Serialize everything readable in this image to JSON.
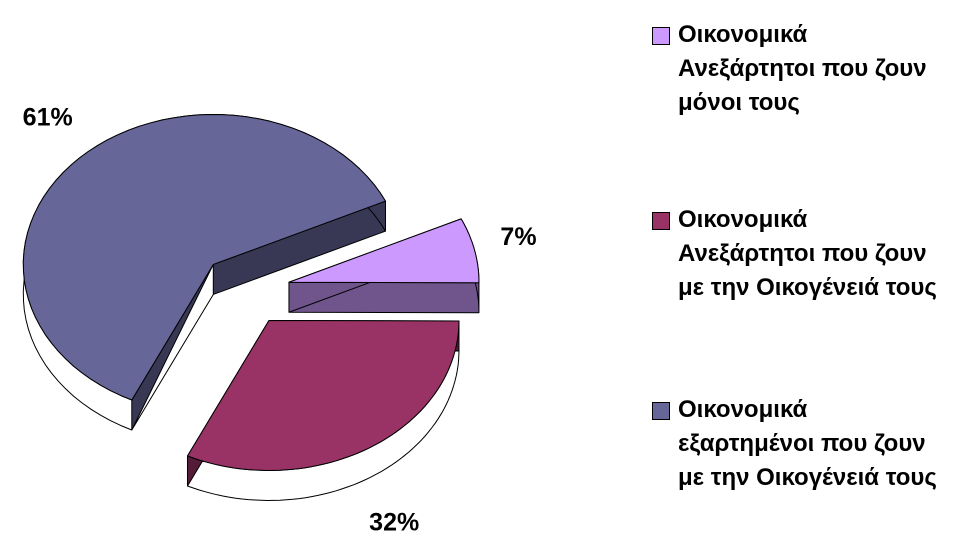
{
  "chart_data": {
    "type": "pie",
    "categories": [
      "Οικονομικά Ανεξάρτητοι που ζουν μόνοι τους",
      "Οικονομικά Ανεξάρτητοι που ζουν με την Οικογένειά τους",
      "Οικονομικά εξαρτημένοι που ζουν με την Οικογένειά τους"
    ],
    "values": [
      7,
      32,
      61
    ],
    "value_labels": [
      "7%",
      "32%",
      "61%"
    ],
    "colors": [
      "#cc99ff",
      "#993366",
      "#666699"
    ],
    "legend": "right"
  }
}
